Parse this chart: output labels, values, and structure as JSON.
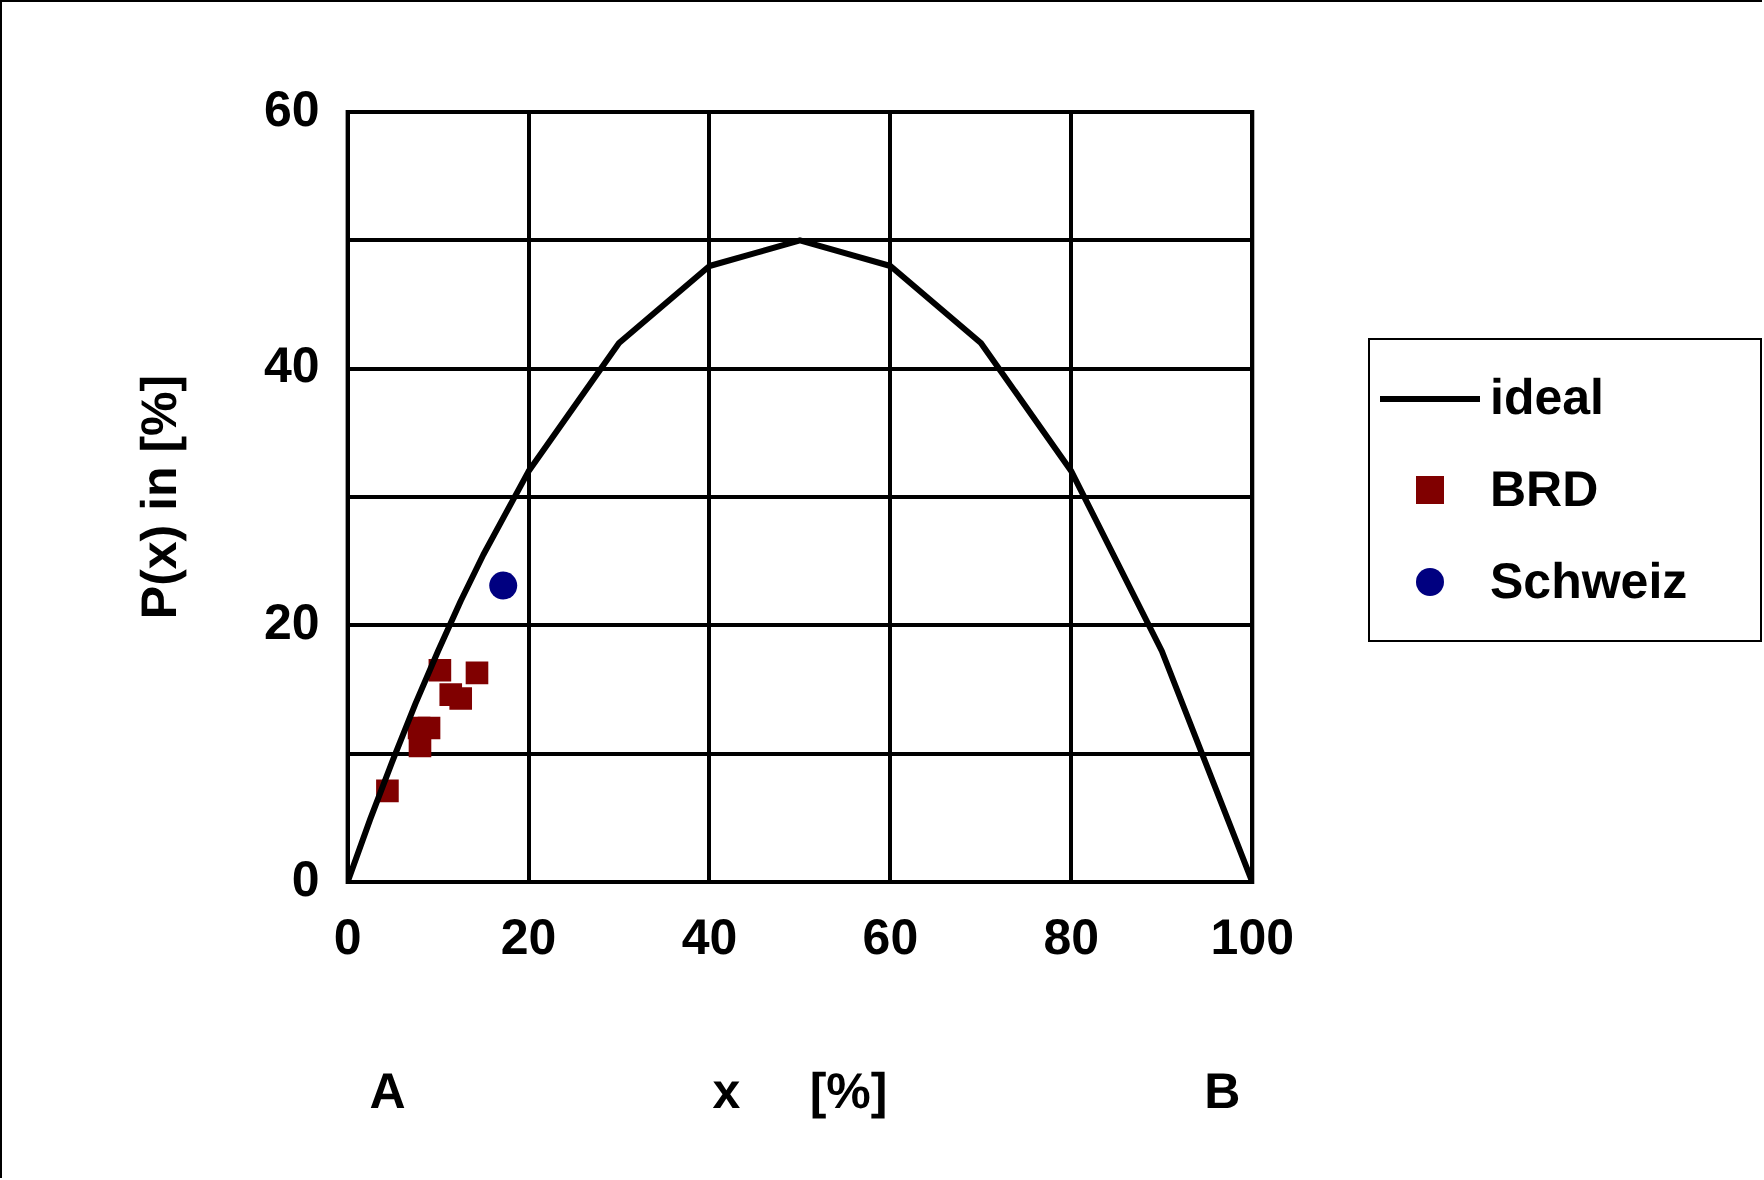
{
  "chart_data": {
    "type": "scatter",
    "ylabel": "P(x) in [%]",
    "xlabel": "x     [%]",
    "xlim": [
      0,
      100
    ],
    "xticks": [
      0,
      20,
      40,
      60,
      80,
      100
    ],
    "ylim": [
      0,
      60
    ],
    "yticks": [
      0,
      {
        "value": 10,
        "label": null
      },
      20,
      {
        "value": 30,
        "label": null
      },
      40,
      {
        "value": 50,
        "label": null
      },
      60
    ],
    "grid": true,
    "legend": "right",
    "annotations": [
      "A",
      "B"
    ],
    "series": [
      {
        "name": "ideal",
        "type": "line",
        "color": "#000000",
        "marker": "none",
        "line_style": "solid",
        "x": [
          0,
          2.5,
          5,
          7.5,
          10,
          12.5,
          15,
          20,
          30,
          40,
          50,
          60,
          70,
          80,
          90,
          100
        ],
        "values": [
          0,
          4.9,
          9.5,
          13.9,
          18,
          21.9,
          25.5,
          32,
          42,
          48,
          50,
          48,
          42,
          32,
          18,
          0
        ]
      },
      {
        "name": "BRD",
        "type": "scatter",
        "color": "#800000",
        "marker": "square",
        "x": [
          4.4,
          7.9,
          9.0,
          8.0,
          10.2,
          14.3,
          11.4,
          12.5
        ],
        "values": [
          7.1,
          12.0,
          12.0,
          10.6,
          16.5,
          16.3,
          14.6,
          14.3
        ]
      },
      {
        "name": "Schweiz",
        "type": "scatter",
        "color": "#000080",
        "marker": "circle",
        "x": [
          17.2
        ],
        "values": [
          23.1
        ]
      }
    ]
  }
}
